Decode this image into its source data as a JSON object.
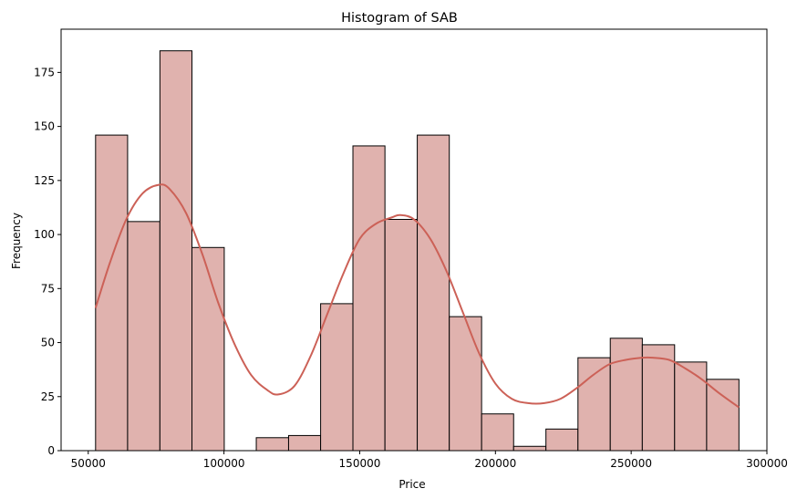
{
  "chart_data": {
    "type": "bar",
    "title": "Histogram of SAB",
    "xlabel": "Price",
    "ylabel": "Frequency",
    "xlim": [
      40000,
      300000
    ],
    "ylim": [
      0,
      195
    ],
    "x_ticks": [
      50000,
      100000,
      150000,
      200000,
      250000,
      300000
    ],
    "y_ticks": [
      0,
      25,
      50,
      75,
      100,
      125,
      150,
      175
    ],
    "bins": [
      {
        "start": 52700,
        "end": 64500,
        "count": 146
      },
      {
        "start": 64500,
        "end": 76400,
        "count": 106
      },
      {
        "start": 76400,
        "end": 88200,
        "count": 185
      },
      {
        "start": 88200,
        "end": 100100,
        "count": 94
      },
      {
        "start": 100100,
        "end": 111900,
        "count": 0
      },
      {
        "start": 111900,
        "end": 123800,
        "count": 6
      },
      {
        "start": 123800,
        "end": 135600,
        "count": 7
      },
      {
        "start": 135600,
        "end": 147500,
        "count": 68
      },
      {
        "start": 147500,
        "end": 159300,
        "count": 141
      },
      {
        "start": 159300,
        "end": 171200,
        "count": 107
      },
      {
        "start": 171200,
        "end": 183000,
        "count": 146
      },
      {
        "start": 183000,
        "end": 194900,
        "count": 62
      },
      {
        "start": 194900,
        "end": 206700,
        "count": 17
      },
      {
        "start": 206700,
        "end": 218600,
        "count": 2
      },
      {
        "start": 218600,
        "end": 230400,
        "count": 10
      },
      {
        "start": 230400,
        "end": 242300,
        "count": 43
      },
      {
        "start": 242300,
        "end": 254100,
        "count": 52
      },
      {
        "start": 254100,
        "end": 266000,
        "count": 49
      },
      {
        "start": 266000,
        "end": 277800,
        "count": 41
      },
      {
        "start": 277800,
        "end": 289700,
        "count": 33
      }
    ],
    "kde": {
      "x": [
        52700,
        58000,
        64000,
        70000,
        76000,
        80000,
        86000,
        92000,
        98000,
        104000,
        110000,
        116000,
        120000,
        126000,
        132000,
        138000,
        144000,
        150000,
        156000,
        162000,
        165000,
        170000,
        176000,
        182000,
        188000,
        194000,
        200000,
        206000,
        212000,
        218000,
        224000,
        230000,
        236000,
        242000,
        248000,
        254000,
        258000,
        264000,
        270000,
        276000,
        282000,
        289700
      ],
      "y": [
        66,
        87,
        107,
        119,
        123,
        121,
        110,
        91,
        68,
        49,
        35,
        28,
        26,
        30,
        44,
        63,
        82,
        98,
        105,
        108,
        109,
        107,
        98,
        83,
        64,
        45,
        31,
        24,
        22,
        22,
        24,
        29,
        35,
        40,
        42,
        43,
        43,
        42,
        38,
        33,
        27,
        20
      ]
    },
    "bar_color": "#e0b2ae",
    "bar_edge_color": "#000000",
    "line_color": "#cc6157",
    "grid": false,
    "legend": "none"
  }
}
